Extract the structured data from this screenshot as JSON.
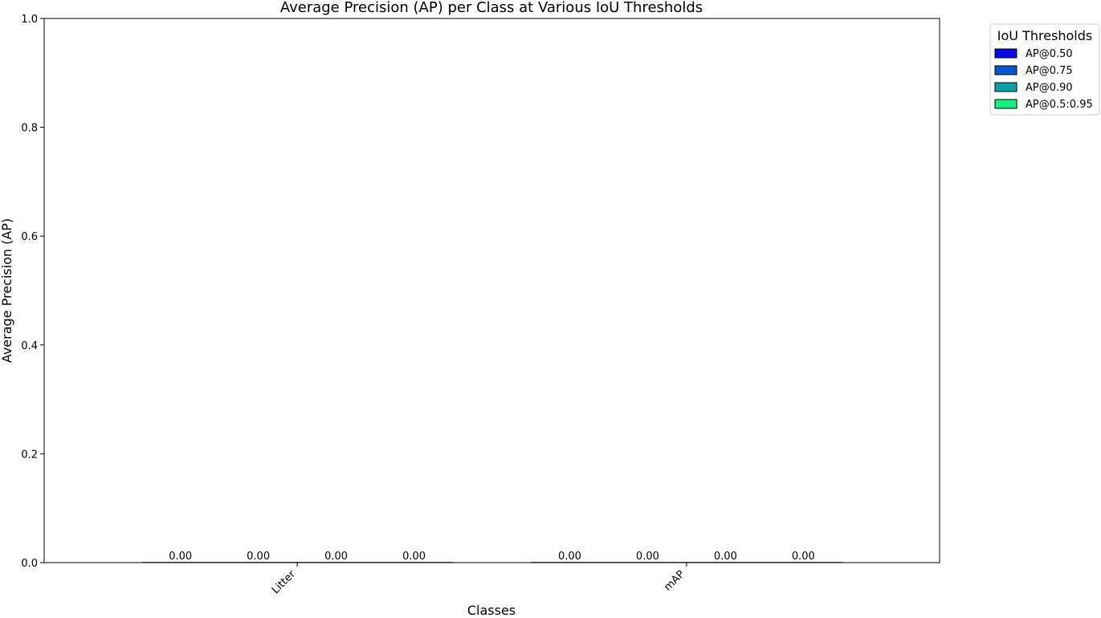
{
  "chart_data": {
    "type": "bar",
    "title": "Average Precision (AP) per Class at Various IoU Thresholds",
    "xlabel": "Classes",
    "ylabel": "Average Precision (AP)",
    "ylim": [
      0,
      1.0
    ],
    "yticks": [
      "0.0",
      "0.2",
      "0.4",
      "0.6",
      "0.8",
      "1.0"
    ],
    "categories": [
      "Litter",
      "mAP"
    ],
    "series": [
      {
        "name": "AP@0.50",
        "color": "#0a0ae6",
        "values": [
          0.0,
          0.0
        ],
        "labels": [
          "0.00",
          "0.00"
        ]
      },
      {
        "name": "AP@0.75",
        "color": "#0a55d2",
        "values": [
          0.0,
          0.0
        ],
        "labels": [
          "0.00",
          "0.00"
        ]
      },
      {
        "name": "AP@0.90",
        "color": "#0aa0aa",
        "values": [
          0.0,
          0.0
        ],
        "labels": [
          "0.00",
          "0.00"
        ]
      },
      {
        "name": "AP@0.5:0.95",
        "color": "#14f080",
        "values": [
          0.0,
          0.0
        ],
        "labels": [
          "0.00",
          "0.00"
        ]
      }
    ],
    "legend": {
      "title": "IoU Thresholds",
      "placement": "outside-top-right"
    },
    "grid": false
  }
}
